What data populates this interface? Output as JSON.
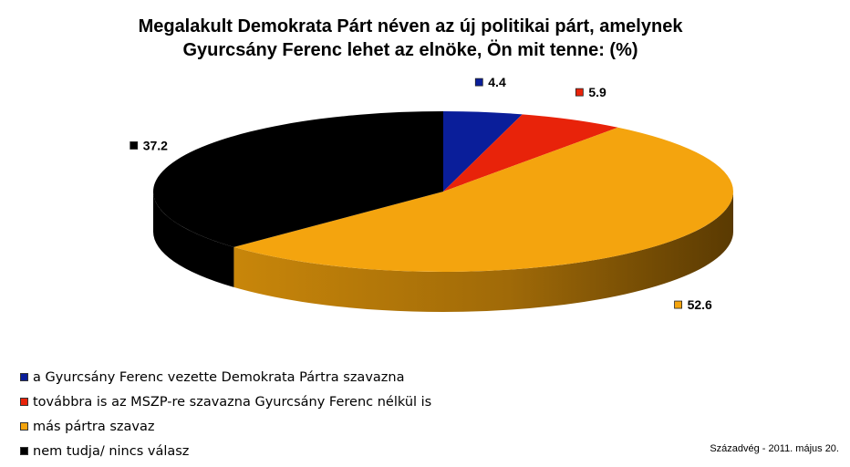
{
  "chart_data": {
    "type": "pie",
    "title_line1": "Megalakult Demokrata Párt néven az új politikai párt, amelynek",
    "title_line2": "Gyurcsány Ferenc lehet az elnöke, Ön mit tenne: (%)",
    "slices": [
      {
        "name": "a Gyurcsány Ferenc vezette Demokrata Pártra szavazna",
        "value": 4.4,
        "label": "4.4",
        "color": "#0a1e9a"
      },
      {
        "name": "továbbra is az MSZP-re szavazna Gyurcsány Ferenc nélkül is",
        "value": 5.9,
        "label": "5.9",
        "color": "#e8230a"
      },
      {
        "name": "más pártra szavaz",
        "value": 52.6,
        "label": "52.6",
        "color": "#f4a40e"
      },
      {
        "name": "nem tudja/ nincs válasz",
        "value": 37.2,
        "label": "37.2",
        "color": "#000000"
      }
    ],
    "legend_position": "bottom-left"
  },
  "source": "Századvég - 2011. május 20."
}
